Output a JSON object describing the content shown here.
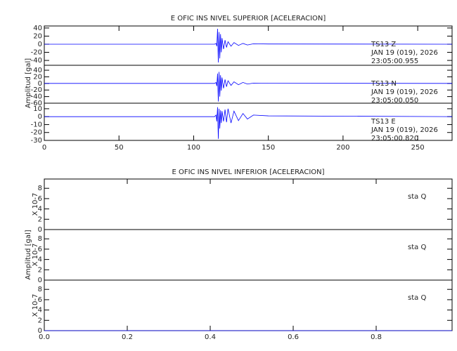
{
  "chart_data": [
    {
      "type": "line",
      "title": "E OFIC INS NIVEL SUPERIOR [ACELERACION]",
      "ylabel": "Amplitud [gal]",
      "xlim": [
        0,
        273
      ],
      "xticks": [
        0,
        50,
        100,
        150,
        200,
        250
      ],
      "panels": [
        {
          "annotation": [
            "TS13   Z",
            "JAN 19 (019), 2026",
            "23:05:00.955"
          ],
          "ylim": [
            -52,
            45
          ],
          "yticks": [
            40,
            20,
            0,
            -20,
            -40
          ],
          "series": [
            {
              "color": "#0000ff",
              "x": [
                0,
                114,
                115,
                115.5,
                116,
                116.5,
                117,
                117.5,
                118,
                118.5,
                119,
                120,
                121,
                122,
                123,
                125,
                127,
                130,
                133,
                136,
                140,
                150,
                273
              ],
              "values": [
                0,
                0,
                2,
                -5,
                38,
                -45,
                30,
                -35,
                25,
                -20,
                15,
                -12,
                10,
                -8,
                6,
                -5,
                4,
                -3,
                2,
                -2,
                1,
                0.5,
                0
              ]
            }
          ]
        },
        {
          "annotation": [
            "TS13   N",
            "JAN 19 (019), 2026",
            "23:05:00.050"
          ],
          "ylim": [
            -60,
            55
          ],
          "yticks": [
            40,
            20,
            0,
            -20,
            -40,
            -60
          ],
          "series": [
            {
              "color": "#0000ff",
              "x": [
                0,
                114,
                115,
                115.5,
                116,
                116.5,
                117,
                117.5,
                118,
                118.5,
                119,
                120,
                121,
                122,
                123,
                125,
                127,
                130,
                133,
                136,
                140,
                150,
                273
              ],
              "values": [
                0,
                0,
                3,
                -8,
                30,
                -55,
                35,
                -40,
                25,
                -22,
                18,
                -15,
                12,
                -10,
                8,
                -6,
                5,
                -4,
                3,
                -2,
                1,
                0.5,
                0
              ]
            }
          ]
        },
        {
          "annotation": [
            "TS13   E",
            "JAN 19 (019), 2026",
            "23:05:00.820"
          ],
          "ylim": [
            -30,
            17
          ],
          "yticks": [
            10,
            0,
            -10,
            -20,
            -30
          ],
          "series": [
            {
              "color": "#0000ff",
              "x": [
                0,
                114,
                115,
                115.5,
                116,
                116.5,
                117,
                117.5,
                118,
                118.5,
                119,
                120,
                121,
                122,
                123,
                125,
                127,
                130,
                133,
                136,
                140,
                150,
                273
              ],
              "values": [
                0,
                0,
                2,
                -6,
                12,
                -28,
                10,
                -15,
                8,
                -8,
                7,
                -6,
                9,
                -7,
                10,
                -8,
                7,
                -5,
                4,
                -3,
                2,
                1,
                0
              ]
            }
          ]
        }
      ]
    },
    {
      "type": "line",
      "title": "E OFIC INS NIVEL INFERIOR [ACELERACION]",
      "ylabel": "Amplitud [gal]",
      "yscale_label": "X 10-7",
      "xlim": [
        0,
        0.983
      ],
      "xticks": [
        {
          "value": 0,
          "label": "0.0"
        },
        {
          "value": 0.2,
          "label": "0.2"
        },
        {
          "value": 0.4,
          "label": "0.4"
        },
        {
          "value": 0.6,
          "label": "0.6"
        },
        {
          "value": 0.8,
          "label": "0.8"
        }
      ],
      "panels": [
        {
          "annotation": [
            "sta   Q"
          ],
          "ylim": [
            0,
            9.8
          ],
          "yticks": [
            0,
            2,
            4,
            6,
            8
          ],
          "series": [
            {
              "color": "#0000ff",
              "x": [
                0,
                0.983
              ],
              "values": [
                0,
                0
              ]
            }
          ]
        },
        {
          "annotation": [
            "sta   Q"
          ],
          "ylim": [
            0,
            9.8
          ],
          "yticks": [
            0,
            2,
            4,
            6,
            8
          ],
          "series": [
            {
              "color": "#0000ff",
              "x": [
                0,
                0.983
              ],
              "values": [
                0,
                0
              ]
            }
          ]
        },
        {
          "annotation": [
            "sta   Q"
          ],
          "ylim": [
            0,
            9.8
          ],
          "yticks": [
            0,
            2,
            4,
            6,
            8
          ],
          "series": [
            {
              "color": "#0000ff",
              "x": [
                0,
                0.983
              ],
              "values": [
                0,
                0
              ]
            }
          ]
        }
      ]
    }
  ]
}
